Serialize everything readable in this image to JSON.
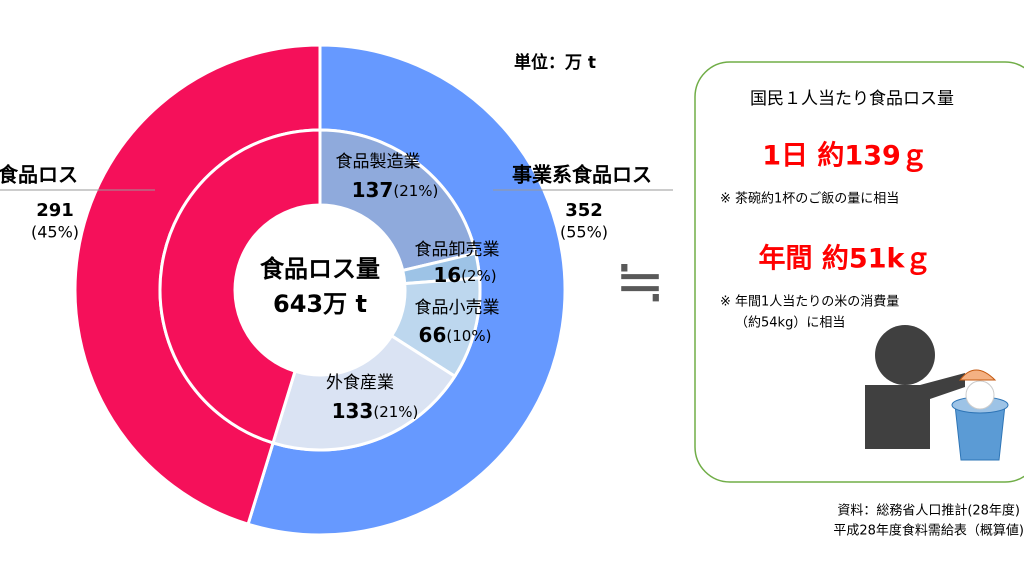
{
  "chart_data": {
    "type": "donut",
    "unit": "単位：万 t",
    "center_label": [
      "食品ロス量",
      "643万 t"
    ],
    "outer": {
      "categories": [
        "事業系食品ロス",
        "家庭系食品ロス"
      ],
      "values": [
        352,
        291
      ],
      "percents": [
        55,
        45
      ],
      "percent_labels": [
        "(55%)",
        "(45%)"
      ],
      "colors": [
        "#6699ff",
        "#f5105a"
      ]
    },
    "inner": {
      "categories": [
        "食品製造業",
        "食品卸売業",
        "食品小売業",
        "外食産業",
        null
      ],
      "values": [
        137,
        16,
        66,
        133,
        291
      ],
      "percents": [
        21,
        2,
        10,
        21,
        null
      ],
      "percent_labels": [
        "(21%)",
        "(2%)",
        "(10%)",
        "(21%)",
        null
      ],
      "colors": [
        "#8faadc",
        "#9dc3e6",
        "#bdd7ee",
        "#dae3f3",
        "#f5105a"
      ]
    },
    "approx_symbol": "≒"
  },
  "side_panel": {
    "title": "国民１人当たり食品ロス量",
    "daily": "1日 約139ｇ",
    "daily_note": "※ 茶碗約1杯のご飯の量に相当",
    "yearly": "年間 約51kｇ",
    "yearly_note": [
      "※ 年間1人当たりの米の消費量",
      "（約54kg）に相当"
    ]
  },
  "source": [
    "資料：総務省人口推計(28年度)",
    "平成28年度食料需給表（概算値)"
  ]
}
